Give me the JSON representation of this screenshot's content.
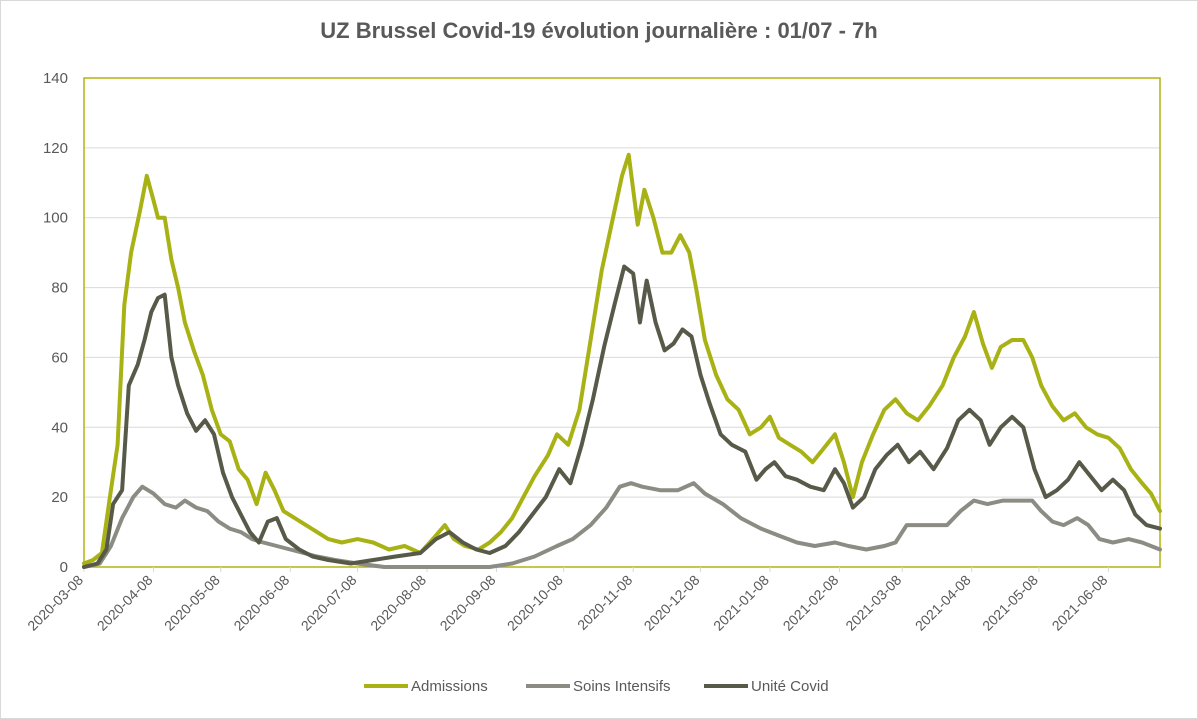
{
  "chart_data": {
    "type": "line",
    "title": "UZ Brussel Covid-19 évolution journalière : 01/07 - 7h",
    "xlabel": "",
    "ylabel": "",
    "ylim": [
      0,
      140
    ],
    "yticks": [
      "0",
      "20",
      "40",
      "60",
      "80",
      "100",
      "120",
      "140"
    ],
    "xlim": [
      "2020-03-08",
      "2021-07-01"
    ],
    "xticks": [
      "2020-03-08",
      "2020-04-08",
      "2020-05-08",
      "2020-06-08",
      "2020-07-08",
      "2020-08-08",
      "2020-09-08",
      "2020-10-08",
      "2020-11-08",
      "2020-12-08",
      "2021-01-08",
      "2021-02-08",
      "2021-03-08",
      "2021-04-08",
      "2021-05-08",
      "2021-06-08"
    ],
    "grid": "horizontal",
    "legend": "bottom",
    "series": [
      {
        "name": "Admissions",
        "color": "#a9b214",
        "points": [
          [
            "2020-03-08",
            1
          ],
          [
            "2020-03-12",
            2
          ],
          [
            "2020-03-16",
            4
          ],
          [
            "2020-03-20",
            22
          ],
          [
            "2020-03-23",
            35
          ],
          [
            "2020-03-26",
            75
          ],
          [
            "2020-03-29",
            90
          ],
          [
            "2020-04-02",
            102
          ],
          [
            "2020-04-05",
            112
          ],
          [
            "2020-04-08",
            105
          ],
          [
            "2020-04-10",
            100
          ],
          [
            "2020-04-13",
            100
          ],
          [
            "2020-04-16",
            88
          ],
          [
            "2020-04-19",
            80
          ],
          [
            "2020-04-22",
            70
          ],
          [
            "2020-04-26",
            62
          ],
          [
            "2020-04-30",
            55
          ],
          [
            "2020-05-04",
            45
          ],
          [
            "2020-05-08",
            38
          ],
          [
            "2020-05-12",
            36
          ],
          [
            "2020-05-16",
            28
          ],
          [
            "2020-05-20",
            25
          ],
          [
            "2020-05-24",
            18
          ],
          [
            "2020-05-28",
            27
          ],
          [
            "2020-06-01",
            22
          ],
          [
            "2020-06-05",
            16
          ],
          [
            "2020-06-10",
            14
          ],
          [
            "2020-06-15",
            12
          ],
          [
            "2020-06-20",
            10
          ],
          [
            "2020-06-25",
            8
          ],
          [
            "2020-07-01",
            7
          ],
          [
            "2020-07-08",
            8
          ],
          [
            "2020-07-15",
            7
          ],
          [
            "2020-07-22",
            5
          ],
          [
            "2020-07-29",
            6
          ],
          [
            "2020-08-05",
            4
          ],
          [
            "2020-08-12",
            9
          ],
          [
            "2020-08-16",
            12
          ],
          [
            "2020-08-20",
            8
          ],
          [
            "2020-08-25",
            6
          ],
          [
            "2020-08-31",
            5
          ],
          [
            "2020-09-05",
            7
          ],
          [
            "2020-09-10",
            10
          ],
          [
            "2020-09-15",
            14
          ],
          [
            "2020-09-20",
            20
          ],
          [
            "2020-09-25",
            26
          ],
          [
            "2020-10-01",
            32
          ],
          [
            "2020-10-05",
            38
          ],
          [
            "2020-10-10",
            35
          ],
          [
            "2020-10-15",
            45
          ],
          [
            "2020-10-20",
            65
          ],
          [
            "2020-10-25",
            85
          ],
          [
            "2020-10-30",
            100
          ],
          [
            "2020-11-03",
            112
          ],
          [
            "2020-11-06",
            118
          ],
          [
            "2020-11-10",
            98
          ],
          [
            "2020-11-13",
            108
          ],
          [
            "2020-11-17",
            100
          ],
          [
            "2020-11-21",
            90
          ],
          [
            "2020-11-25",
            90
          ],
          [
            "2020-11-29",
            95
          ],
          [
            "2020-12-03",
            90
          ],
          [
            "2020-12-06",
            80
          ],
          [
            "2020-12-10",
            65
          ],
          [
            "2020-12-15",
            55
          ],
          [
            "2020-12-20",
            48
          ],
          [
            "2020-12-25",
            45
          ],
          [
            "2020-12-30",
            38
          ],
          [
            "2021-01-04",
            40
          ],
          [
            "2021-01-08",
            43
          ],
          [
            "2021-01-12",
            37
          ],
          [
            "2021-01-17",
            35
          ],
          [
            "2021-01-22",
            33
          ],
          [
            "2021-01-27",
            30
          ],
          [
            "2021-02-01",
            34
          ],
          [
            "2021-02-06",
            38
          ],
          [
            "2021-02-10",
            30
          ],
          [
            "2021-02-14",
            20
          ],
          [
            "2021-02-18",
            30
          ],
          [
            "2021-02-23",
            38
          ],
          [
            "2021-02-28",
            45
          ],
          [
            "2021-03-05",
            48
          ],
          [
            "2021-03-10",
            44
          ],
          [
            "2021-03-15",
            42
          ],
          [
            "2021-03-20",
            46
          ],
          [
            "2021-03-26",
            52
          ],
          [
            "2021-03-31",
            60
          ],
          [
            "2021-04-05",
            66
          ],
          [
            "2021-04-09",
            73
          ],
          [
            "2021-04-13",
            64
          ],
          [
            "2021-04-17",
            57
          ],
          [
            "2021-04-21",
            63
          ],
          [
            "2021-04-26",
            65
          ],
          [
            "2021-05-01",
            65
          ],
          [
            "2021-05-05",
            60
          ],
          [
            "2021-05-09",
            52
          ],
          [
            "2021-05-14",
            46
          ],
          [
            "2021-05-19",
            42
          ],
          [
            "2021-05-24",
            44
          ],
          [
            "2021-05-29",
            40
          ],
          [
            "2021-06-03",
            38
          ],
          [
            "2021-06-08",
            37
          ],
          [
            "2021-06-13",
            34
          ],
          [
            "2021-06-18",
            28
          ],
          [
            "2021-06-23",
            24
          ],
          [
            "2021-06-27",
            21
          ],
          [
            "2021-07-01",
            16
          ]
        ]
      },
      {
        "name": "Soins Intensifs",
        "color": "#8c8c84",
        "points": [
          [
            "2020-03-08",
            0
          ],
          [
            "2020-03-15",
            1
          ],
          [
            "2020-03-20",
            6
          ],
          [
            "2020-03-25",
            14
          ],
          [
            "2020-03-30",
            20
          ],
          [
            "2020-04-03",
            23
          ],
          [
            "2020-04-08",
            21
          ],
          [
            "2020-04-13",
            18
          ],
          [
            "2020-04-18",
            17
          ],
          [
            "2020-04-22",
            19
          ],
          [
            "2020-04-27",
            17
          ],
          [
            "2020-05-02",
            16
          ],
          [
            "2020-05-07",
            13
          ],
          [
            "2020-05-12",
            11
          ],
          [
            "2020-05-17",
            10
          ],
          [
            "2020-05-22",
            8
          ],
          [
            "2020-05-27",
            7
          ],
          [
            "2020-06-02",
            6
          ],
          [
            "2020-06-08",
            5
          ],
          [
            "2020-06-14",
            4
          ],
          [
            "2020-06-20",
            3
          ],
          [
            "2020-06-28",
            2
          ],
          [
            "2020-07-08",
            1
          ],
          [
            "2020-07-20",
            0
          ],
          [
            "2020-08-05",
            0
          ],
          [
            "2020-08-20",
            0
          ],
          [
            "2020-09-05",
            0
          ],
          [
            "2020-09-15",
            1
          ],
          [
            "2020-09-25",
            3
          ],
          [
            "2020-10-05",
            6
          ],
          [
            "2020-10-12",
            8
          ],
          [
            "2020-10-20",
            12
          ],
          [
            "2020-10-27",
            17
          ],
          [
            "2020-11-02",
            23
          ],
          [
            "2020-11-07",
            24
          ],
          [
            "2020-11-12",
            23
          ],
          [
            "2020-11-20",
            22
          ],
          [
            "2020-11-28",
            22
          ],
          [
            "2020-12-05",
            24
          ],
          [
            "2020-12-10",
            21
          ],
          [
            "2020-12-18",
            18
          ],
          [
            "2020-12-26",
            14
          ],
          [
            "2021-01-04",
            11
          ],
          [
            "2021-01-12",
            9
          ],
          [
            "2021-01-20",
            7
          ],
          [
            "2021-01-28",
            6
          ],
          [
            "2021-02-06",
            7
          ],
          [
            "2021-02-12",
            6
          ],
          [
            "2021-02-20",
            5
          ],
          [
            "2021-02-28",
            6
          ],
          [
            "2021-03-05",
            7
          ],
          [
            "2021-03-10",
            12
          ],
          [
            "2021-03-20",
            12
          ],
          [
            "2021-03-28",
            12
          ],
          [
            "2021-04-03",
            16
          ],
          [
            "2021-04-09",
            19
          ],
          [
            "2021-04-15",
            18
          ],
          [
            "2021-04-22",
            19
          ],
          [
            "2021-04-29",
            19
          ],
          [
            "2021-05-05",
            19
          ],
          [
            "2021-05-09",
            16
          ],
          [
            "2021-05-14",
            13
          ],
          [
            "2021-05-19",
            12
          ],
          [
            "2021-05-25",
            14
          ],
          [
            "2021-05-30",
            12
          ],
          [
            "2021-06-04",
            8
          ],
          [
            "2021-06-10",
            7
          ],
          [
            "2021-06-17",
            8
          ],
          [
            "2021-06-23",
            7
          ],
          [
            "2021-07-01",
            5
          ]
        ]
      },
      {
        "name": "Unité Covid",
        "color": "#575a48",
        "points": [
          [
            "2020-03-08",
            0
          ],
          [
            "2020-03-14",
            1
          ],
          [
            "2020-03-18",
            5
          ],
          [
            "2020-03-21",
            18
          ],
          [
            "2020-03-25",
            22
          ],
          [
            "2020-03-28",
            52
          ],
          [
            "2020-04-01",
            58
          ],
          [
            "2020-04-04",
            65
          ],
          [
            "2020-04-07",
            73
          ],
          [
            "2020-04-10",
            77
          ],
          [
            "2020-04-13",
            78
          ],
          [
            "2020-04-16",
            60
          ],
          [
            "2020-04-19",
            52
          ],
          [
            "2020-04-23",
            44
          ],
          [
            "2020-04-27",
            39
          ],
          [
            "2020-05-01",
            42
          ],
          [
            "2020-05-05",
            38
          ],
          [
            "2020-05-09",
            27
          ],
          [
            "2020-05-13",
            20
          ],
          [
            "2020-05-17",
            15
          ],
          [
            "2020-05-21",
            10
          ],
          [
            "2020-05-25",
            7
          ],
          [
            "2020-05-29",
            13
          ],
          [
            "2020-06-02",
            14
          ],
          [
            "2020-06-06",
            8
          ],
          [
            "2020-06-12",
            5
          ],
          [
            "2020-06-18",
            3
          ],
          [
            "2020-06-25",
            2
          ],
          [
            "2020-07-05",
            1
          ],
          [
            "2020-07-15",
            2
          ],
          [
            "2020-07-25",
            3
          ],
          [
            "2020-08-05",
            4
          ],
          [
            "2020-08-12",
            8
          ],
          [
            "2020-08-18",
            10
          ],
          [
            "2020-08-24",
            7
          ],
          [
            "2020-08-30",
            5
          ],
          [
            "2020-09-05",
            4
          ],
          [
            "2020-09-12",
            6
          ],
          [
            "2020-09-18",
            10
          ],
          [
            "2020-09-24",
            15
          ],
          [
            "2020-09-30",
            20
          ],
          [
            "2020-10-06",
            28
          ],
          [
            "2020-10-11",
            24
          ],
          [
            "2020-10-16",
            35
          ],
          [
            "2020-10-21",
            48
          ],
          [
            "2020-10-26",
            63
          ],
          [
            "2020-10-31",
            76
          ],
          [
            "2020-11-04",
            86
          ],
          [
            "2020-11-08",
            84
          ],
          [
            "2020-11-11",
            70
          ],
          [
            "2020-11-14",
            82
          ],
          [
            "2020-11-18",
            70
          ],
          [
            "2020-11-22",
            62
          ],
          [
            "2020-11-26",
            64
          ],
          [
            "2020-11-30",
            68
          ],
          [
            "2020-12-04",
            66
          ],
          [
            "2020-12-08",
            55
          ],
          [
            "2020-12-12",
            47
          ],
          [
            "2020-12-17",
            38
          ],
          [
            "2020-12-22",
            35
          ],
          [
            "2020-12-28",
            33
          ],
          [
            "2021-01-02",
            25
          ],
          [
            "2021-01-06",
            28
          ],
          [
            "2021-01-10",
            30
          ],
          [
            "2021-01-15",
            26
          ],
          [
            "2021-01-20",
            25
          ],
          [
            "2021-01-26",
            23
          ],
          [
            "2021-02-01",
            22
          ],
          [
            "2021-02-06",
            28
          ],
          [
            "2021-02-10",
            24
          ],
          [
            "2021-02-14",
            17
          ],
          [
            "2021-02-19",
            20
          ],
          [
            "2021-02-24",
            28
          ],
          [
            "2021-03-01",
            32
          ],
          [
            "2021-03-06",
            35
          ],
          [
            "2021-03-11",
            30
          ],
          [
            "2021-03-16",
            33
          ],
          [
            "2021-03-22",
            28
          ],
          [
            "2021-03-28",
            34
          ],
          [
            "2021-04-02",
            42
          ],
          [
            "2021-04-07",
            45
          ],
          [
            "2021-04-12",
            42
          ],
          [
            "2021-04-16",
            35
          ],
          [
            "2021-04-21",
            40
          ],
          [
            "2021-04-26",
            43
          ],
          [
            "2021-05-01",
            40
          ],
          [
            "2021-05-06",
            28
          ],
          [
            "2021-05-11",
            20
          ],
          [
            "2021-05-16",
            22
          ],
          [
            "2021-05-21",
            25
          ],
          [
            "2021-05-26",
            30
          ],
          [
            "2021-05-31",
            26
          ],
          [
            "2021-06-05",
            22
          ],
          [
            "2021-06-10",
            25
          ],
          [
            "2021-06-15",
            22
          ],
          [
            "2021-06-20",
            15
          ],
          [
            "2021-06-25",
            12
          ],
          [
            "2021-07-01",
            11
          ]
        ]
      }
    ]
  }
}
